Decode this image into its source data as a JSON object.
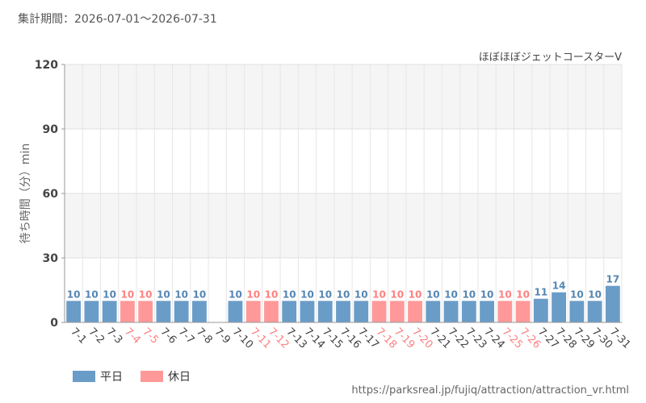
{
  "header": {
    "period_label": "集計期間：",
    "period_range": "2026-07-01～2026-07-31"
  },
  "source_url": "https://parksreal.jp/fujiq/attraction/attraction_vr.html",
  "chart_data": {
    "type": "bar",
    "title": "ほぼほぼジェットコースターV",
    "ylabel": "待ち時間（分）min",
    "xlabel": "",
    "ylim": [
      0,
      120
    ],
    "yticks": [
      0,
      30,
      60,
      90,
      120
    ],
    "grid": true,
    "legend_position": "bottom-left",
    "colors": {
      "weekday": "#6a9cc8",
      "holiday": "#ff9999",
      "weekday_label": "#5586b3",
      "holiday_label": "#ff8080",
      "axis_text": "#444444"
    },
    "legend": [
      {
        "key": "weekday",
        "label": "平日"
      },
      {
        "key": "holiday",
        "label": "休日"
      }
    ],
    "categories": [
      "7-1",
      "7-2",
      "7-3",
      "7-4",
      "7-5",
      "7-6",
      "7-7",
      "7-8",
      "7-9",
      "7-10",
      "7-11",
      "7-12",
      "7-13",
      "7-14",
      "7-15",
      "7-16",
      "7-17",
      "7-18",
      "7-19",
      "7-20",
      "7-21",
      "7-22",
      "7-23",
      "7-24",
      "7-25",
      "7-26",
      "7-27",
      "7-28",
      "7-29",
      "7-30",
      "7-31"
    ],
    "values": [
      10,
      10,
      10,
      10,
      10,
      10,
      10,
      10,
      null,
      10,
      10,
      10,
      10,
      10,
      10,
      10,
      10,
      10,
      10,
      10,
      10,
      10,
      10,
      10,
      10,
      10,
      11,
      14,
      10,
      10,
      17
    ],
    "day_type": [
      "weekday",
      "weekday",
      "weekday",
      "holiday",
      "holiday",
      "weekday",
      "weekday",
      "weekday",
      "weekday",
      "weekday",
      "holiday",
      "holiday",
      "weekday",
      "weekday",
      "weekday",
      "weekday",
      "weekday",
      "holiday",
      "holiday",
      "holiday",
      "weekday",
      "weekday",
      "weekday",
      "weekday",
      "holiday",
      "holiday",
      "weekday",
      "weekday",
      "weekday",
      "weekday",
      "weekday"
    ]
  }
}
